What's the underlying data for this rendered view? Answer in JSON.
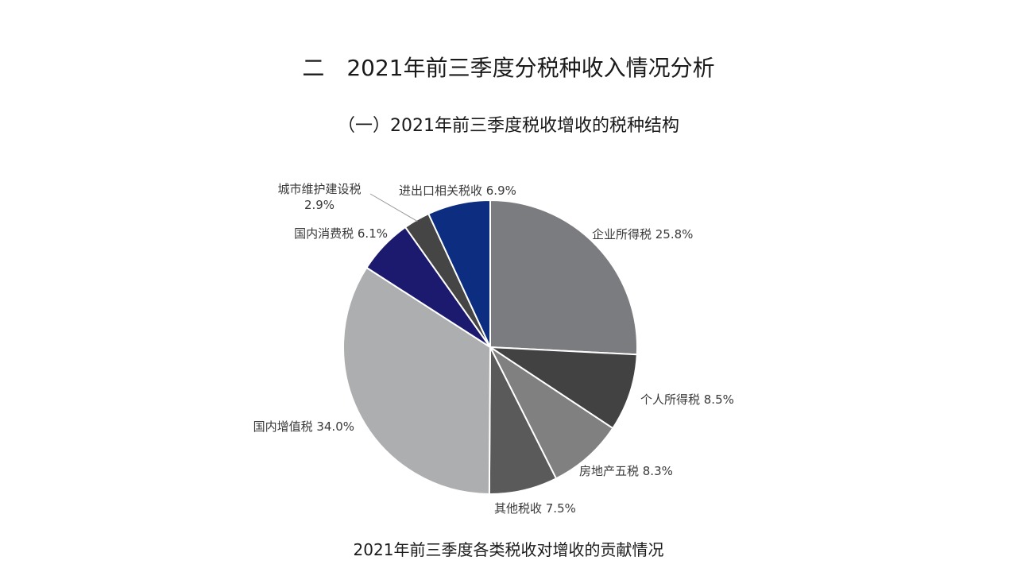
{
  "section_title": "二　2021年前三季度分税种收入情况分析",
  "sub_title": "（一）2021年前三季度税收增收的税种结构",
  "caption": "2021年前三季度各类税收对增收的贡献情况",
  "chart_data": {
    "type": "pie",
    "title": "",
    "slices": [
      {
        "name": "企业所得税",
        "value": 25.8,
        "label": "企业所得税 25.8%",
        "color": "#7b7c7f"
      },
      {
        "name": "个人所得税",
        "value": 8.5,
        "label": "个人所得税 8.5%",
        "color": "#424242"
      },
      {
        "name": "房地产五税",
        "value": 8.3,
        "label": "房地产五税 8.3%",
        "color": "#808080"
      },
      {
        "name": "其他税收",
        "value": 7.5,
        "label": "其他税收 7.5%",
        "color": "#5a5a5a"
      },
      {
        "name": "国内增值税",
        "value": 34.0,
        "label": "国内增值税 34.0%",
        "color": "#adaeb0"
      },
      {
        "name": "国内消费税",
        "value": 6.1,
        "label": "国内消费税 6.1%",
        "color": "#1c1a6f"
      },
      {
        "name": "城市维护建设税",
        "value": 2.9,
        "label": "城市维护建设税",
        "label2": "2.9%",
        "color": "#454545"
      },
      {
        "name": "进出口相关税收",
        "value": 6.9,
        "label": "进出口相关税收 6.9%",
        "color": "#0c2d80"
      }
    ],
    "start": "top",
    "direction": "clockwise"
  }
}
